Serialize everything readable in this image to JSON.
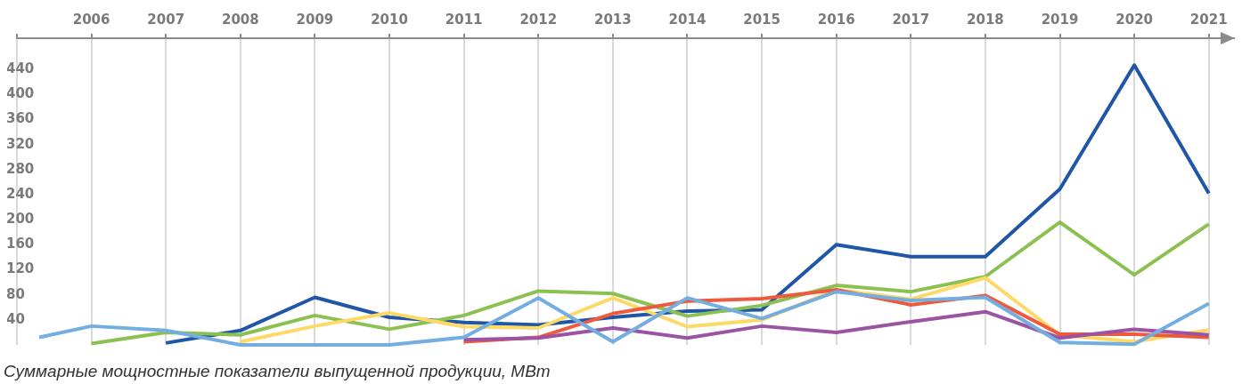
{
  "chart_data": {
    "type": "line",
    "x": [
      2006,
      2007,
      2008,
      2009,
      2010,
      2011,
      2012,
      2013,
      2014,
      2015,
      2016,
      2017,
      2018,
      2019,
      2020,
      2021
    ],
    "xlim": [
      2005,
      2021.35
    ],
    "xticks": [
      {
        "value": 2005,
        "label": null
      },
      2006,
      2007,
      2008,
      2009,
      2010,
      2011,
      2012,
      2013,
      2014,
      2015,
      2016,
      2017,
      2018,
      2019,
      2020,
      2021
    ],
    "ylim": [
      0,
      490
    ],
    "yticks": [
      40,
      80,
      120,
      160,
      200,
      240,
      280,
      320,
      360,
      400,
      440
    ],
    "grid": "x",
    "legend": false,
    "marker": "none",
    "line_style": "solid",
    "annotations": [
      "Суммарные мощностные показатели выпущенной продукции, МВт"
    ],
    "series": [
      {
        "color": "#74aee0",
        "x": [
          2005.3,
          2006,
          2007,
          2008,
          2009,
          2010,
          2011,
          2012,
          2013,
          2014,
          2015,
          2016,
          2017,
          2018,
          2019,
          2020,
          2021
        ],
        "values": [
          12,
          30,
          23,
          0,
          0,
          0,
          12,
          75,
          5,
          75,
          42,
          85,
          71,
          76,
          4,
          1,
          66
        ]
      },
      {
        "color": "#9b54a3",
        "values": [
          null,
          null,
          null,
          null,
          null,
          8,
          11,
          27,
          11,
          30,
          20,
          37,
          53,
          11,
          25,
          16
        ]
      },
      {
        "color": "#ee5a3c",
        "values": [
          null,
          null,
          null,
          null,
          null,
          5,
          12,
          50,
          70,
          74,
          88,
          64,
          79,
          17,
          17,
          12
        ]
      },
      {
        "color": "#ffd966",
        "values": [
          null,
          null,
          5,
          30,
          51,
          29,
          27,
          75,
          29,
          40,
          88,
          73,
          107,
          16,
          5,
          24
        ]
      },
      {
        "color": "#8cc152",
        "values": [
          2,
          20,
          16,
          47,
          25,
          47,
          86,
          82,
          46,
          63,
          95,
          85,
          109,
          196,
          112,
          193
        ]
      },
      {
        "color": "#1f56a6",
        "values": [
          null,
          3,
          23,
          76,
          44,
          36,
          32,
          44,
          54,
          56,
          160,
          141,
          141,
          249,
          447,
          242
        ]
      }
    ]
  }
}
